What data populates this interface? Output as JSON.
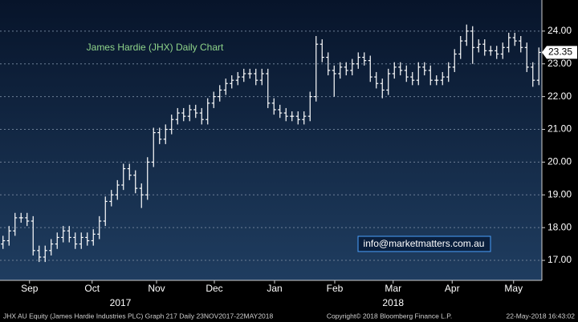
{
  "chart_data": {
    "type": "ohlc",
    "title": "James Hardie (JHX) Daily Chart",
    "annotation": "info@marketmatters.com.au",
    "footer_left": "JHX AU Equity (James Hardie Industries PLC) Graph 217  Daily 23NOV2017-22MAY2018",
    "footer_center": "Copyright© 2018 Bloomberg Finance L.P.",
    "footer_right": "22-May-2018 16:43:02",
    "color": "#ffffff",
    "last_price_color": "#ffffff",
    "ylim": [
      16.39,
      24.95
    ],
    "yticks": [
      {
        "value": 17,
        "label": "17.00"
      },
      {
        "value": 18,
        "label": "18.00"
      },
      {
        "value": 19,
        "label": "19.00"
      },
      {
        "value": 20,
        "label": "20.00"
      },
      {
        "value": 21,
        "label": "21.00"
      },
      {
        "value": 22,
        "label": "22.00"
      },
      {
        "value": 23,
        "label": "23.00"
      },
      {
        "value": 24,
        "label": "24.00"
      }
    ],
    "xlim": [
      -0.5,
      89.5
    ],
    "xticks": [
      {
        "value": 4.4,
        "label": "Sep"
      },
      {
        "value": 14.8,
        "label": "Oct"
      },
      {
        "value": 25.5,
        "label": "Nov"
      },
      {
        "value": 35.1,
        "label": "Dec"
      },
      {
        "value": 45.1,
        "label": "Jan"
      },
      {
        "value": 55.1,
        "label": "Feb"
      },
      {
        "value": 64.8,
        "label": "Mar"
      },
      {
        "value": 74.6,
        "label": "Apr"
      },
      {
        "value": 84.8,
        "label": "May"
      }
    ],
    "year_ticks": [
      {
        "value": 19.5,
        "label": "2017"
      },
      {
        "value": 64.8,
        "label": "2018"
      }
    ],
    "grid": true,
    "open": [
      17.5,
      17.6,
      17.9,
      18.3,
      18.3,
      18.2,
      17.3,
      17.1,
      17.3,
      17.5,
      17.7,
      17.9,
      17.7,
      17.5,
      17.7,
      17.6,
      17.8,
      18.2,
      18.8,
      19.0,
      19.3,
      19.8,
      19.6,
      19.2,
      19.0,
      20.0,
      20.9,
      20.7,
      21.0,
      21.3,
      21.5,
      21.4,
      21.6,
      21.5,
      21.3,
      21.8,
      22.0,
      22.2,
      22.4,
      22.5,
      22.6,
      22.7,
      22.7,
      22.5,
      22.7,
      21.8,
      21.6,
      21.5,
      21.4,
      21.4,
      21.3,
      21.4,
      22.0,
      23.6,
      23.2,
      22.8,
      22.7,
      22.9,
      22.8,
      23.0,
      23.2,
      23.1,
      22.6,
      22.4,
      22.2,
      22.7,
      22.9,
      22.8,
      22.6,
      22.5,
      22.9,
      22.8,
      22.5,
      22.5,
      22.6,
      22.9,
      23.3,
      23.7,
      24.0,
      23.5,
      23.6,
      23.4,
      23.4,
      23.3,
      23.5,
      23.8,
      23.7,
      23.5,
      22.9,
      22.5
    ],
    "high": [
      17.75,
      18.05,
      18.45,
      18.45,
      18.45,
      18.35,
      17.45,
      17.45,
      17.65,
      17.85,
      18.05,
      18.05,
      17.85,
      17.85,
      17.85,
      17.95,
      18.35,
      18.95,
      19.15,
      19.45,
      19.95,
      19.95,
      19.75,
      19.35,
      20.15,
      21.05,
      21.05,
      21.15,
      21.45,
      21.65,
      21.65,
      21.75,
      21.75,
      21.65,
      21.95,
      22.15,
      22.35,
      22.55,
      22.65,
      22.75,
      22.85,
      22.85,
      22.85,
      22.85,
      22.85,
      21.95,
      21.75,
      21.65,
      21.55,
      21.55,
      21.55,
      22.15,
      23.85,
      23.75,
      23.35,
      22.95,
      23.05,
      23.05,
      23.15,
      23.35,
      23.35,
      23.25,
      22.75,
      22.55,
      22.85,
      23.05,
      23.05,
      22.95,
      22.75,
      23.05,
      23.05,
      22.95,
      22.65,
      22.75,
      23.05,
      23.45,
      23.85,
      24.2,
      24.15,
      23.75,
      23.75,
      23.55,
      23.55,
      23.65,
      23.95,
      23.95,
      23.85,
      23.65,
      23.05,
      23.5
    ],
    "low": [
      17.35,
      17.45,
      17.75,
      18.15,
      18.05,
      17.15,
      16.95,
      16.95,
      17.15,
      17.35,
      17.55,
      17.55,
      17.35,
      17.35,
      17.45,
      17.45,
      17.65,
      18.05,
      18.65,
      18.85,
      19.15,
      19.45,
      19.05,
      18.6,
      18.85,
      19.85,
      20.55,
      20.55,
      20.85,
      21.15,
      21.25,
      21.25,
      21.35,
      21.15,
      21.15,
      21.65,
      21.85,
      22.05,
      22.25,
      22.35,
      22.45,
      22.55,
      22.35,
      22.35,
      21.65,
      21.45,
      21.35,
      21.25,
      21.25,
      21.15,
      21.15,
      21.25,
      21.85,
      23.05,
      22.65,
      22.0,
      22.55,
      22.65,
      22.65,
      22.85,
      22.95,
      22.45,
      22.25,
      21.95,
      22.05,
      22.55,
      22.65,
      22.45,
      22.35,
      22.35,
      22.65,
      22.35,
      22.35,
      22.35,
      22.45,
      22.75,
      23.15,
      23.55,
      23.0,
      23.35,
      23.25,
      23.25,
      23.15,
      23.15,
      23.35,
      23.55,
      23.35,
      22.75,
      22.3,
      22.35
    ],
    "close": [
      17.6,
      17.9,
      18.3,
      18.3,
      18.2,
      17.3,
      17.1,
      17.3,
      17.5,
      17.7,
      17.9,
      17.7,
      17.5,
      17.7,
      17.6,
      17.8,
      18.2,
      18.8,
      19.0,
      19.3,
      19.8,
      19.6,
      19.2,
      19.0,
      20.0,
      20.9,
      20.7,
      21.0,
      21.3,
      21.5,
      21.4,
      21.6,
      21.5,
      21.3,
      21.8,
      22.0,
      22.2,
      22.4,
      22.5,
      22.6,
      22.7,
      22.7,
      22.5,
      22.7,
      21.8,
      21.6,
      21.5,
      21.4,
      21.4,
      21.3,
      21.4,
      22.0,
      23.6,
      23.2,
      22.8,
      22.7,
      22.9,
      22.8,
      23.0,
      23.2,
      23.1,
      22.6,
      22.4,
      22.2,
      22.7,
      22.9,
      22.8,
      22.6,
      22.5,
      22.9,
      22.8,
      22.5,
      22.5,
      22.6,
      22.9,
      23.3,
      23.7,
      24.0,
      23.5,
      23.6,
      23.4,
      23.4,
      23.3,
      23.5,
      23.8,
      23.7,
      23.5,
      22.9,
      22.5,
      23.35
    ]
  }
}
